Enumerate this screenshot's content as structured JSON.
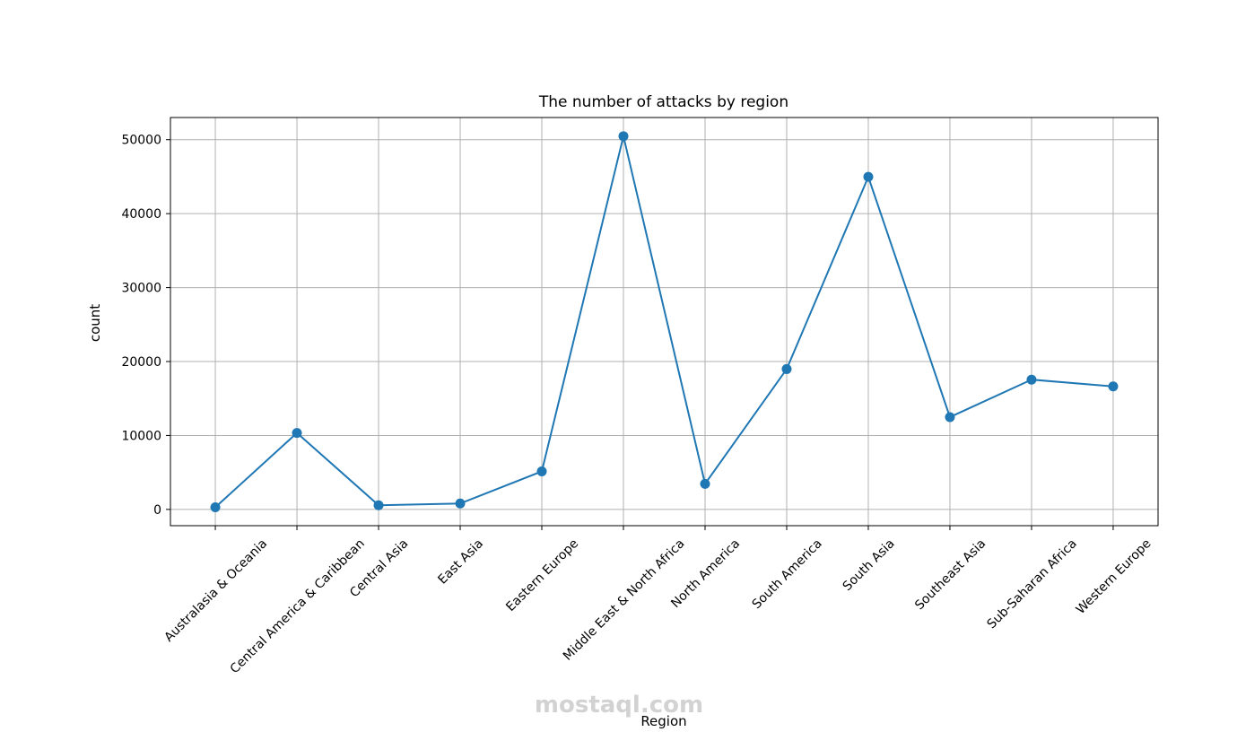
{
  "chart_data": {
    "type": "line",
    "title": "The number of attacks by region",
    "xlabel": "Region",
    "ylabel": "count",
    "watermark": "mostaql.com",
    "categories": [
      "Australasia & Oceania",
      "Central America & Caribbean",
      "Central Asia",
      "East Asia",
      "Eastern Europe",
      "Middle East & North Africa",
      "North America",
      "South America",
      "South Asia",
      "Southeast Asia",
      "Sub-Saharan Africa",
      "Western Europe"
    ],
    "series": [
      {
        "color": "#1f77b4",
        "values": [
          282,
          10344,
          563,
          802,
          5144,
          50474,
          3456,
          18978,
          44974,
          12485,
          17550,
          16639
        ]
      }
    ],
    "ylim": [
      -2200,
      53000
    ],
    "yticks": [
      0,
      10000,
      20000,
      30000,
      40000,
      50000
    ],
    "grid": true
  }
}
